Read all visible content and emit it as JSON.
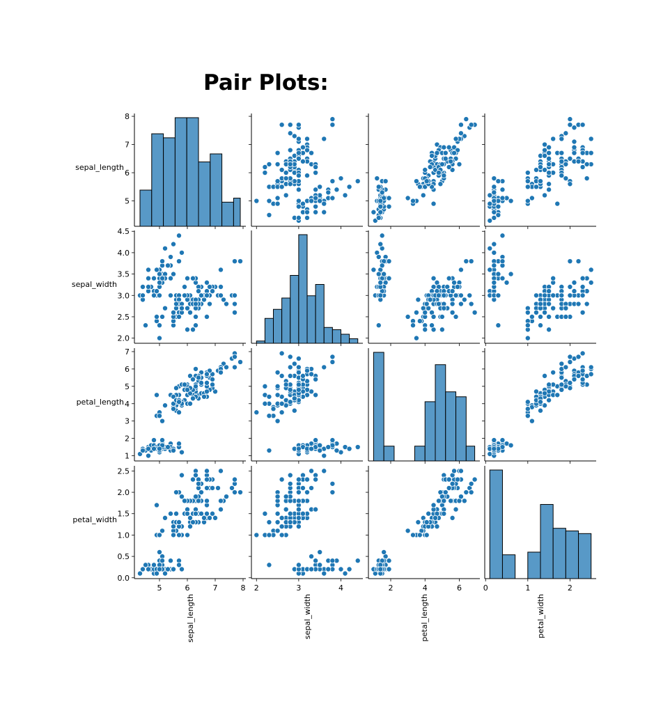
{
  "title": "Pair Plots:",
  "colors": {
    "fill": "#1f77b4",
    "hist_fill": "#5899c7",
    "edge": "#ffffff",
    "hist_edge": "#000000"
  },
  "variables": [
    "sepal_length",
    "sepal_width",
    "petal_length",
    "petal_width"
  ],
  "chart_data": {
    "type": "scatter",
    "kind": "pairplot",
    "diagonal": "histogram",
    "ranges": {
      "sepal_length": [
        4.1,
        8.1
      ],
      "sepal_width": [
        1.88,
        4.52
      ],
      "petal_length": [
        0.7,
        7.2
      ],
      "petal_width": [
        -0.02,
        2.62
      ]
    },
    "ticks": {
      "sepal_length": [
        5,
        6,
        7,
        8
      ],
      "sepal_width": [
        2.0,
        2.5,
        3.0,
        3.5,
        4.0,
        4.5
      ],
      "petal_length": [
        1,
        2,
        3,
        4,
        5,
        6,
        7
      ],
      "petal_width": [
        0.0,
        0.5,
        1.0,
        1.5,
        2.0,
        2.5
      ]
    },
    "ticks_x": {
      "sepal_length": [
        5,
        6,
        7,
        8
      ],
      "sepal_width": [
        2,
        3,
        4
      ],
      "petal_length": [
        2,
        4,
        6
      ],
      "petal_width": [
        0,
        1,
        2
      ]
    },
    "tick_labels_y": {
      "sepal_length": [
        "5",
        "6",
        "7",
        "8"
      ],
      "sepal_width": [
        "2.0",
        "2.5",
        "3.0",
        "3.5",
        "4.0",
        "4.5"
      ],
      "petal_length": [
        "1",
        "2",
        "3",
        "4",
        "5",
        "6",
        "7"
      ],
      "petal_width": [
        "0.0",
        "0.5",
        "1.0",
        "1.5",
        "2.0",
        "2.5"
      ]
    },
    "tick_labels_x": {
      "sepal_length": [
        "5",
        "6",
        "7",
        "8"
      ],
      "sepal_width": [
        "2",
        "3",
        "4"
      ],
      "petal_length": [
        "2",
        "4",
        "6"
      ],
      "petal_width": [
        "0",
        "1",
        "2"
      ]
    },
    "histograms": {
      "sepal_length": {
        "edges": [
          4.3,
          4.72,
          5.14,
          5.56,
          5.98,
          6.4,
          6.82,
          7.24,
          7.66,
          7.9
        ],
        "counts": [
          9,
          23,
          22,
          27,
          27,
          16,
          18,
          6,
          7
        ]
      },
      "sepal_width": {
        "edges": [
          2.0,
          2.2,
          2.4,
          2.6,
          2.8,
          3.0,
          3.2,
          3.4,
          3.6,
          3.8,
          4.0,
          4.2,
          4.4
        ],
        "counts": [
          1,
          11,
          15,
          20,
          30,
          48,
          21,
          26,
          7,
          6,
          4,
          2
        ]
      },
      "petal_length": {
        "edges": [
          1.0,
          1.6,
          2.2,
          2.8,
          3.4,
          4.0,
          4.6,
          5.2,
          5.8,
          6.4,
          6.9
        ],
        "counts": [
          44,
          6,
          0,
          0,
          6,
          24,
          39,
          28,
          26,
          6
        ]
      },
      "petal_width": {
        "edges": [
          0.1,
          0.4,
          0.7,
          1.0,
          1.3,
          1.6,
          1.9,
          2.2,
          2.5
        ],
        "counts": [
          41,
          9,
          0,
          10,
          28,
          19,
          18,
          17
        ]
      }
    },
    "points": [
      [
        5.1,
        3.5,
        1.4,
        0.2
      ],
      [
        4.9,
        3.0,
        1.4,
        0.2
      ],
      [
        4.7,
        3.2,
        1.3,
        0.2
      ],
      [
        4.6,
        3.1,
        1.5,
        0.2
      ],
      [
        5.0,
        3.6,
        1.4,
        0.2
      ],
      [
        5.4,
        3.9,
        1.7,
        0.4
      ],
      [
        4.6,
        3.4,
        1.4,
        0.3
      ],
      [
        5.0,
        3.4,
        1.5,
        0.2
      ],
      [
        4.4,
        2.9,
        1.4,
        0.2
      ],
      [
        4.9,
        3.1,
        1.5,
        0.1
      ],
      [
        5.4,
        3.7,
        1.5,
        0.2
      ],
      [
        4.8,
        3.4,
        1.6,
        0.2
      ],
      [
        4.8,
        3.0,
        1.4,
        0.1
      ],
      [
        4.3,
        3.0,
        1.1,
        0.1
      ],
      [
        5.8,
        4.0,
        1.2,
        0.2
      ],
      [
        5.7,
        4.4,
        1.5,
        0.4
      ],
      [
        5.4,
        3.9,
        1.3,
        0.4
      ],
      [
        5.1,
        3.5,
        1.4,
        0.3
      ],
      [
        5.7,
        3.8,
        1.7,
        0.3
      ],
      [
        5.1,
        3.8,
        1.5,
        0.3
      ],
      [
        5.4,
        3.4,
        1.7,
        0.2
      ],
      [
        5.1,
        3.7,
        1.5,
        0.4
      ],
      [
        4.6,
        3.6,
        1.0,
        0.2
      ],
      [
        5.1,
        3.3,
        1.7,
        0.5
      ],
      [
        4.8,
        3.4,
        1.9,
        0.2
      ],
      [
        5.0,
        3.0,
        1.6,
        0.2
      ],
      [
        5.0,
        3.4,
        1.6,
        0.4
      ],
      [
        5.2,
        3.5,
        1.5,
        0.2
      ],
      [
        5.2,
        3.4,
        1.4,
        0.2
      ],
      [
        4.7,
        3.2,
        1.6,
        0.2
      ],
      [
        4.8,
        3.1,
        1.6,
        0.2
      ],
      [
        5.4,
        3.4,
        1.5,
        0.4
      ],
      [
        5.2,
        4.1,
        1.5,
        0.1
      ],
      [
        5.5,
        4.2,
        1.4,
        0.2
      ],
      [
        4.9,
        3.1,
        1.5,
        0.2
      ],
      [
        5.0,
        3.2,
        1.2,
        0.2
      ],
      [
        5.5,
        3.5,
        1.3,
        0.2
      ],
      [
        4.9,
        3.6,
        1.4,
        0.1
      ],
      [
        4.4,
        3.0,
        1.3,
        0.2
      ],
      [
        5.1,
        3.4,
        1.5,
        0.2
      ],
      [
        5.0,
        3.5,
        1.3,
        0.3
      ],
      [
        4.5,
        2.3,
        1.3,
        0.3
      ],
      [
        4.4,
        3.2,
        1.3,
        0.2
      ],
      [
        5.0,
        3.5,
        1.6,
        0.6
      ],
      [
        5.1,
        3.8,
        1.9,
        0.4
      ],
      [
        4.8,
        3.0,
        1.4,
        0.3
      ],
      [
        5.1,
        3.8,
        1.6,
        0.2
      ],
      [
        4.6,
        3.2,
        1.4,
        0.2
      ],
      [
        5.3,
        3.7,
        1.5,
        0.2
      ],
      [
        5.0,
        3.3,
        1.4,
        0.2
      ],
      [
        7.0,
        3.2,
        4.7,
        1.4
      ],
      [
        6.4,
        3.2,
        4.5,
        1.5
      ],
      [
        6.9,
        3.1,
        4.9,
        1.5
      ],
      [
        5.5,
        2.3,
        4.0,
        1.3
      ],
      [
        6.5,
        2.8,
        4.6,
        1.5
      ],
      [
        5.7,
        2.8,
        4.5,
        1.3
      ],
      [
        6.3,
        3.3,
        4.7,
        1.6
      ],
      [
        4.9,
        2.4,
        3.3,
        1.0
      ],
      [
        6.6,
        2.9,
        4.6,
        1.3
      ],
      [
        5.2,
        2.7,
        3.9,
        1.4
      ],
      [
        5.0,
        2.0,
        3.5,
        1.0
      ],
      [
        5.9,
        3.0,
        4.2,
        1.5
      ],
      [
        6.0,
        2.2,
        4.0,
        1.0
      ],
      [
        6.1,
        2.9,
        4.7,
        1.4
      ],
      [
        5.6,
        2.9,
        3.6,
        1.3
      ],
      [
        6.7,
        3.1,
        4.4,
        1.4
      ],
      [
        5.6,
        3.0,
        4.5,
        1.5
      ],
      [
        5.8,
        2.7,
        4.1,
        1.0
      ],
      [
        6.2,
        2.2,
        4.5,
        1.5
      ],
      [
        5.6,
        2.5,
        3.9,
        1.1
      ],
      [
        5.9,
        3.2,
        4.8,
        1.8
      ],
      [
        6.1,
        2.8,
        4.0,
        1.3
      ],
      [
        6.3,
        2.5,
        4.9,
        1.5
      ],
      [
        6.1,
        2.8,
        4.7,
        1.2
      ],
      [
        6.4,
        2.9,
        4.3,
        1.3
      ],
      [
        6.6,
        3.0,
        4.4,
        1.4
      ],
      [
        6.8,
        2.8,
        4.8,
        1.4
      ],
      [
        6.7,
        3.0,
        5.0,
        1.7
      ],
      [
        6.0,
        2.9,
        4.5,
        1.5
      ],
      [
        5.7,
        2.6,
        3.5,
        1.0
      ],
      [
        5.5,
        2.4,
        3.8,
        1.1
      ],
      [
        5.5,
        2.4,
        3.7,
        1.0
      ],
      [
        5.8,
        2.7,
        3.9,
        1.2
      ],
      [
        6.0,
        2.7,
        5.1,
        1.6
      ],
      [
        5.4,
        3.0,
        4.5,
        1.5
      ],
      [
        6.0,
        3.4,
        4.5,
        1.6
      ],
      [
        6.7,
        3.1,
        4.7,
        1.5
      ],
      [
        6.3,
        2.3,
        4.4,
        1.3
      ],
      [
        5.6,
        3.0,
        4.1,
        1.3
      ],
      [
        5.5,
        2.5,
        4.0,
        1.3
      ],
      [
        5.5,
        2.6,
        4.4,
        1.2
      ],
      [
        6.1,
        3.0,
        4.6,
        1.4
      ],
      [
        5.8,
        2.6,
        4.0,
        1.2
      ],
      [
        5.0,
        2.3,
        3.3,
        1.0
      ],
      [
        5.6,
        2.7,
        4.2,
        1.3
      ],
      [
        5.7,
        3.0,
        4.2,
        1.2
      ],
      [
        5.7,
        2.9,
        4.2,
        1.3
      ],
      [
        6.2,
        2.9,
        4.3,
        1.3
      ],
      [
        5.1,
        2.5,
        3.0,
        1.1
      ],
      [
        5.7,
        2.8,
        4.1,
        1.3
      ],
      [
        6.3,
        3.3,
        6.0,
        2.5
      ],
      [
        5.8,
        2.7,
        5.1,
        1.9
      ],
      [
        7.1,
        3.0,
        5.9,
        2.1
      ],
      [
        6.3,
        2.9,
        5.6,
        1.8
      ],
      [
        6.5,
        3.0,
        5.8,
        2.2
      ],
      [
        7.6,
        3.0,
        6.6,
        2.1
      ],
      [
        4.9,
        2.5,
        4.5,
        1.7
      ],
      [
        7.3,
        2.9,
        6.3,
        1.8
      ],
      [
        6.7,
        2.5,
        5.8,
        1.8
      ],
      [
        7.2,
        3.6,
        6.1,
        2.5
      ],
      [
        6.5,
        3.2,
        5.1,
        2.0
      ],
      [
        6.4,
        2.7,
        5.3,
        1.9
      ],
      [
        6.8,
        3.0,
        5.5,
        2.1
      ],
      [
        5.7,
        2.5,
        5.0,
        2.0
      ],
      [
        5.8,
        2.8,
        5.1,
        2.4
      ],
      [
        6.4,
        3.2,
        5.3,
        2.3
      ],
      [
        6.5,
        3.0,
        5.5,
        1.8
      ],
      [
        7.7,
        3.8,
        6.7,
        2.2
      ],
      [
        7.7,
        2.6,
        6.9,
        2.3
      ],
      [
        6.0,
        2.2,
        5.0,
        1.5
      ],
      [
        6.9,
        3.2,
        5.7,
        2.3
      ],
      [
        5.6,
        2.8,
        4.9,
        2.0
      ],
      [
        7.7,
        2.8,
        6.7,
        2.0
      ],
      [
        6.3,
        2.7,
        4.9,
        1.8
      ],
      [
        6.7,
        3.3,
        5.7,
        2.1
      ],
      [
        7.2,
        3.2,
        6.0,
        1.8
      ],
      [
        6.2,
        2.8,
        4.8,
        1.8
      ],
      [
        6.1,
        3.0,
        4.9,
        1.8
      ],
      [
        6.4,
        2.8,
        5.6,
        2.1
      ],
      [
        7.2,
        3.0,
        5.8,
        1.6
      ],
      [
        7.4,
        2.8,
        6.1,
        1.9
      ],
      [
        7.9,
        3.8,
        6.4,
        2.0
      ],
      [
        6.4,
        2.8,
        5.6,
        2.2
      ],
      [
        6.3,
        2.8,
        5.1,
        1.5
      ],
      [
        6.1,
        2.6,
        5.6,
        1.4
      ],
      [
        7.7,
        3.0,
        6.1,
        2.3
      ],
      [
        6.3,
        3.4,
        5.6,
        2.4
      ],
      [
        6.4,
        3.1,
        5.5,
        1.8
      ],
      [
        6.0,
        3.0,
        4.8,
        1.8
      ],
      [
        6.9,
        3.1,
        5.4,
        2.1
      ],
      [
        6.7,
        3.1,
        5.6,
        2.4
      ],
      [
        6.9,
        3.1,
        5.1,
        2.3
      ],
      [
        5.8,
        2.7,
        5.1,
        1.9
      ],
      [
        6.8,
        3.2,
        5.9,
        2.3
      ],
      [
        6.7,
        3.3,
        5.7,
        2.5
      ],
      [
        6.7,
        3.0,
        5.2,
        2.3
      ],
      [
        6.3,
        2.5,
        5.0,
        1.9
      ],
      [
        6.5,
        3.0,
        5.2,
        2.0
      ],
      [
        6.2,
        3.4,
        5.4,
        2.3
      ],
      [
        5.9,
        3.0,
        5.1,
        1.8
      ]
    ]
  }
}
